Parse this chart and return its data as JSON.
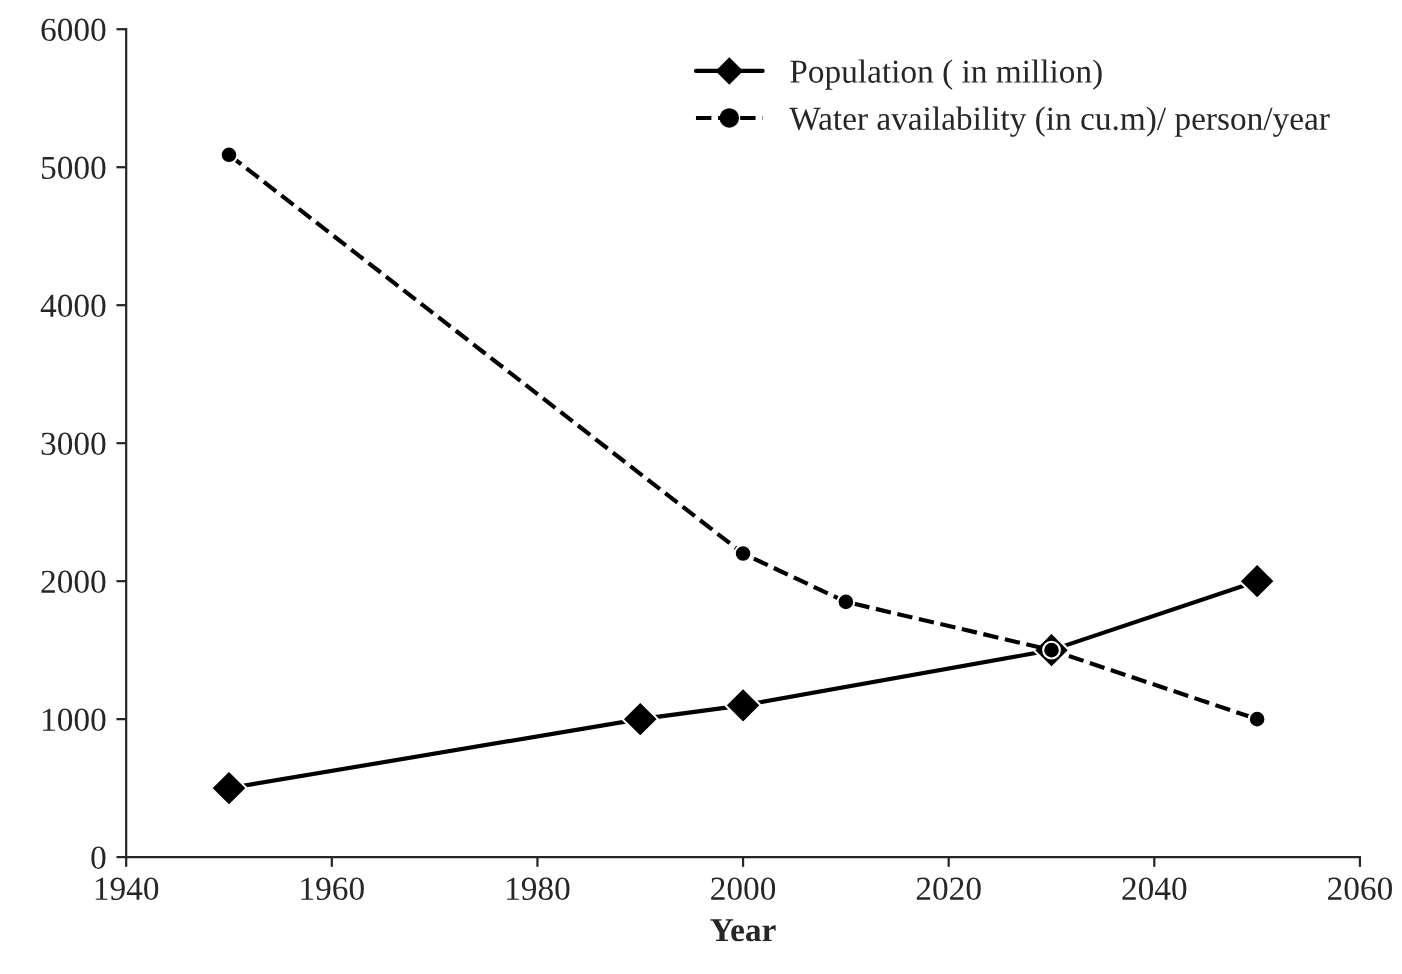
{
  "chart_data": {
    "type": "line",
    "xlabel": "Year",
    "series": [
      {
        "name": "Population ( in million)",
        "color": "#000000",
        "x": [
          1950,
          1990,
          2000,
          2030,
          2050
        ],
        "values": [
          500,
          1000,
          1100,
          1500,
          2000
        ],
        "marker": "diamond",
        "line_style": "solid"
      },
      {
        "name": "Water availability (in cu.m)/ person/year",
        "color": "#000000",
        "x": [
          1950,
          2000,
          2010,
          2030,
          2050
        ],
        "values": [
          5090,
          2200,
          1850,
          1500,
          1000
        ],
        "marker": "circle",
        "line_style": "dashed"
      }
    ],
    "xlim": [
      1940,
      2060
    ],
    "xticks": [
      1940,
      1960,
      1980,
      2000,
      2020,
      2040,
      2060
    ],
    "ylim": [
      0,
      6000
    ],
    "yticks": [
      0,
      1000,
      2000,
      3000,
      4000,
      5000,
      6000
    ],
    "grid": false,
    "legend": "top right"
  }
}
